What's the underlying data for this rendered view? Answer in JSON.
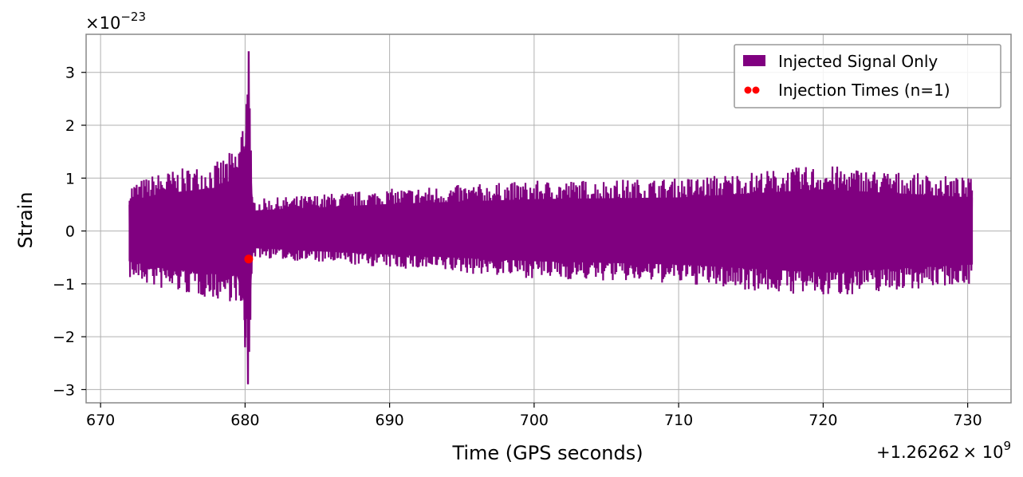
{
  "chart_data": {
    "type": "line",
    "title": "",
    "xlabel": "Time (GPS seconds)",
    "ylabel": "Strain",
    "x_offset_label": "+1.26262",
    "x_offset_mult": "× 10",
    "x_offset_exp": "9",
    "y_scale_prefix": "×10",
    "y_scale_exp": "−23",
    "xlim": [
      669,
      733
    ],
    "ylim": [
      -3.25,
      3.72
    ],
    "xticks": [
      670,
      680,
      690,
      700,
      710,
      720,
      730
    ],
    "xtick_labels": [
      "670",
      "680",
      "690",
      "700",
      "710",
      "720",
      "730"
    ],
    "yticks": [
      -3,
      -2,
      -1,
      0,
      1,
      2,
      3
    ],
    "ytick_labels": [
      "−3",
      "−2",
      "−1",
      "0",
      "1",
      "2",
      "3"
    ],
    "grid": true,
    "legend_position": "top-right",
    "series": [
      {
        "name": "Injected Signal Only",
        "color": "#800080",
        "x_range": [
          672.0,
          730.3
        ],
        "envelope": [
          {
            "x": 672.0,
            "lo": -0.9,
            "hi": 0.9
          },
          {
            "x": 674.0,
            "lo": -1.1,
            "hi": 1.1
          },
          {
            "x": 676.0,
            "lo": -1.2,
            "hi": 1.2
          },
          {
            "x": 678.0,
            "lo": -1.3,
            "hi": 1.3
          },
          {
            "x": 679.5,
            "lo": -1.35,
            "hi": 1.6
          },
          {
            "x": 680.0,
            "lo": -2.2,
            "hi": 2.4
          },
          {
            "x": 680.25,
            "lo": -2.9,
            "hi": 3.4
          },
          {
            "x": 680.5,
            "lo": -0.5,
            "hi": 0.6
          },
          {
            "x": 690.0,
            "lo": -0.7,
            "hi": 0.8
          },
          {
            "x": 700.0,
            "lo": -0.9,
            "hi": 0.95
          },
          {
            "x": 710.0,
            "lo": -1.0,
            "hi": 1.0
          },
          {
            "x": 720.0,
            "lo": -1.25,
            "hi": 1.25
          },
          {
            "x": 730.3,
            "lo": -1.0,
            "hi": 1.0
          }
        ]
      },
      {
        "name": "Injection Times (n=1)",
        "color": "#ff0000",
        "points": [
          {
            "x": 680.25,
            "y": -0.53
          }
        ]
      }
    ]
  }
}
